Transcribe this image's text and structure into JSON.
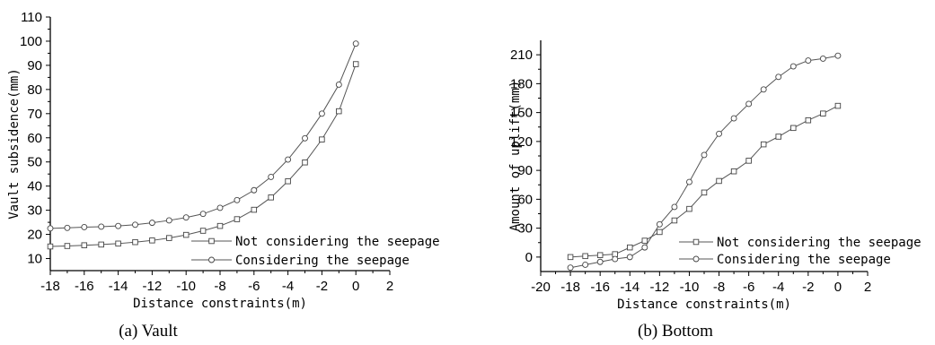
{
  "chart_data": [
    {
      "type": "line",
      "caption": "(a) Vault",
      "xlabel": "Distance constraints(m)",
      "ylabel": "Vault subsidence(mm)",
      "xlim": [
        -18,
        2
      ],
      "ylim": [
        5,
        110
      ],
      "xticks": [
        -18,
        -16,
        -14,
        -12,
        -10,
        -8,
        -6,
        -4,
        -2,
        0,
        2
      ],
      "yticks": [
        10,
        20,
        30,
        40,
        50,
        60,
        70,
        80,
        90,
        100,
        110
      ],
      "x": [
        -18,
        -17,
        -16,
        -15,
        -14,
        -13,
        -12,
        -11,
        -10,
        -9,
        -8,
        -7,
        -6,
        -5,
        -4,
        -3,
        -2,
        -1,
        0
      ],
      "series": [
        {
          "name": "Not considering the seepage",
          "marker": "square",
          "values": [
            15.0,
            15.2,
            15.5,
            15.8,
            16.2,
            16.8,
            17.5,
            18.5,
            19.8,
            21.5,
            23.5,
            26.3,
            30.2,
            35.3,
            42.0,
            49.8,
            59.3,
            71.0,
            90.5
          ]
        },
        {
          "name": "Considering the seepage",
          "marker": "circle",
          "values": [
            22.5,
            22.7,
            23.0,
            23.2,
            23.5,
            24.0,
            24.8,
            25.8,
            27.0,
            28.5,
            31.0,
            34.2,
            38.3,
            43.8,
            51.0,
            59.8,
            70.0,
            82.0,
            99.0
          ]
        }
      ],
      "legend": "bottom-right",
      "grid": false
    },
    {
      "type": "line",
      "caption": "(b) Bottom",
      "xlabel": "Distance constraints(m)",
      "ylabel": "Amount of uplift(mm)",
      "xlim": [
        -20,
        2
      ],
      "ylim": [
        -15,
        225
      ],
      "xticks": [
        -20,
        -18,
        -16,
        -14,
        -12,
        -10,
        -8,
        -6,
        -4,
        -2,
        0,
        2
      ],
      "yticks": [
        0,
        30,
        60,
        90,
        120,
        150,
        180,
        210
      ],
      "x": [
        -18,
        -17,
        -16,
        -15,
        -14,
        -13,
        -12,
        -11,
        -10,
        -9,
        -8,
        -7,
        -6,
        -5,
        -4,
        -3,
        -2,
        -1,
        0
      ],
      "series": [
        {
          "name": "Not considering the seepage",
          "marker": "square",
          "values": [
            0,
            1,
            2,
            3,
            10,
            17,
            26,
            38,
            50,
            67,
            79,
            89,
            100,
            117,
            125,
            134,
            142,
            149,
            157
          ]
        },
        {
          "name": "Considering the seepage",
          "marker": "circle",
          "values": [
            -11,
            -8,
            -5,
            -2,
            0,
            10,
            34,
            52,
            78,
            106,
            128,
            144,
            159,
            174,
            187,
            198,
            204,
            206,
            209
          ]
        }
      ],
      "legend": "bottom-right",
      "grid": false
    }
  ]
}
